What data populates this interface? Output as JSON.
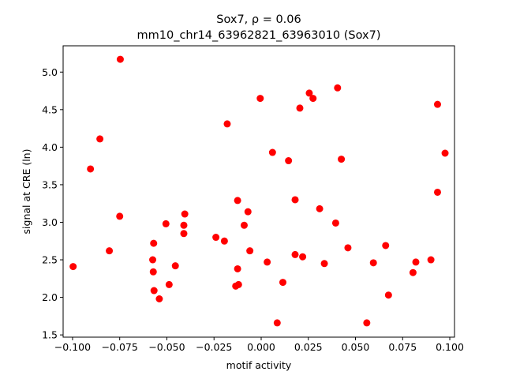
{
  "chart_data": {
    "type": "scatter",
    "title_line1": "Sox7, ρ = 0.06",
    "title_line2": "mm10_chr14_63962821_63963010 (Sox7)",
    "xlabel": "motif activity",
    "ylabel": "signal at CRE (ln)",
    "xlim": [
      -0.105,
      0.1025
    ],
    "ylim": [
      1.47,
      5.35
    ],
    "xticks": [
      -0.1,
      -0.075,
      -0.05,
      -0.025,
      0.0,
      0.025,
      0.05,
      0.075,
      0.1
    ],
    "xtick_labels": [
      "−0.100",
      "−0.075",
      "−0.050",
      "−0.025",
      "0.000",
      "0.025",
      "0.050",
      "0.075",
      "0.100"
    ],
    "yticks": [
      1.5,
      2.0,
      2.5,
      3.0,
      3.5,
      4.0,
      4.5,
      5.0
    ],
    "ytick_labels": [
      "1.5",
      "2.0",
      "2.5",
      "3.0",
      "3.5",
      "4.0",
      "4.5",
      "5.0"
    ],
    "grid": false,
    "marker_color": "#ff0000",
    "points": [
      {
        "x": -0.0997,
        "y": 2.41
      },
      {
        "x": -0.0905,
        "y": 3.71
      },
      {
        "x": -0.0855,
        "y": 4.11
      },
      {
        "x": -0.0805,
        "y": 2.62
      },
      {
        "x": -0.0747,
        "y": 5.17
      },
      {
        "x": -0.075,
        "y": 3.08
      },
      {
        "x": -0.0575,
        "y": 2.5
      },
      {
        "x": -0.057,
        "y": 2.72
      },
      {
        "x": -0.0572,
        "y": 2.34
      },
      {
        "x": -0.0568,
        "y": 2.09
      },
      {
        "x": -0.054,
        "y": 1.98
      },
      {
        "x": -0.0505,
        "y": 2.98
      },
      {
        "x": -0.0488,
        "y": 2.17
      },
      {
        "x": -0.0455,
        "y": 2.42
      },
      {
        "x": -0.041,
        "y": 2.96
      },
      {
        "x": -0.0405,
        "y": 3.11
      },
      {
        "x": -0.041,
        "y": 2.85
      },
      {
        "x": -0.024,
        "y": 2.8
      },
      {
        "x": -0.0195,
        "y": 2.75
      },
      {
        "x": -0.018,
        "y": 4.31
      },
      {
        "x": -0.0125,
        "y": 3.29
      },
      {
        "x": -0.0125,
        "y": 2.38
      },
      {
        "x": -0.0135,
        "y": 2.15
      },
      {
        "x": -0.012,
        "y": 2.17
      },
      {
        "x": -0.009,
        "y": 2.96
      },
      {
        "x": -0.007,
        "y": 3.14
      },
      {
        "x": -0.006,
        "y": 2.62
      },
      {
        "x": -0.0005,
        "y": 4.65
      },
      {
        "x": 0.0032,
        "y": 2.47
      },
      {
        "x": 0.006,
        "y": 3.93
      },
      {
        "x": 0.0085,
        "y": 1.66
      },
      {
        "x": 0.0115,
        "y": 2.2
      },
      {
        "x": 0.0145,
        "y": 3.82
      },
      {
        "x": 0.018,
        "y": 3.3
      },
      {
        "x": 0.018,
        "y": 2.57
      },
      {
        "x": 0.0205,
        "y": 4.52
      },
      {
        "x": 0.022,
        "y": 2.54
      },
      {
        "x": 0.0255,
        "y": 4.72
      },
      {
        "x": 0.0275,
        "y": 4.65
      },
      {
        "x": 0.031,
        "y": 3.18
      },
      {
        "x": 0.0335,
        "y": 2.45
      },
      {
        "x": 0.0395,
        "y": 2.99
      },
      {
        "x": 0.0405,
        "y": 4.79
      },
      {
        "x": 0.0425,
        "y": 3.84
      },
      {
        "x": 0.046,
        "y": 2.66
      },
      {
        "x": 0.056,
        "y": 1.66
      },
      {
        "x": 0.0595,
        "y": 2.46
      },
      {
        "x": 0.066,
        "y": 2.69
      },
      {
        "x": 0.0675,
        "y": 2.03
      },
      {
        "x": 0.0805,
        "y": 2.33
      },
      {
        "x": 0.082,
        "y": 2.47
      },
      {
        "x": 0.09,
        "y": 2.5
      },
      {
        "x": 0.0935,
        "y": 4.57
      },
      {
        "x": 0.0935,
        "y": 3.4
      },
      {
        "x": 0.0975,
        "y": 3.92
      }
    ]
  }
}
